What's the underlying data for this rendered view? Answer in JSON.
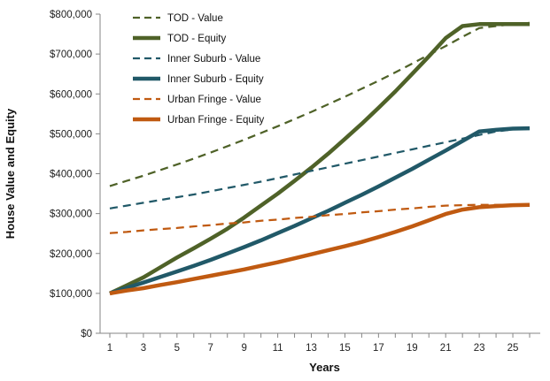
{
  "chart_data": {
    "type": "line",
    "xlabel": "Years",
    "ylabel": "House Value and Equity",
    "xlim": [
      1,
      26
    ],
    "ylim": [
      0,
      800000
    ],
    "x_ticks": [
      1,
      3,
      5,
      7,
      9,
      11,
      13,
      15,
      17,
      19,
      21,
      23,
      25
    ],
    "y_ticks": [
      0,
      100000,
      200000,
      300000,
      400000,
      500000,
      600000,
      700000,
      800000
    ],
    "y_tick_labels": [
      "$0",
      "$100,000",
      "$200,000",
      "$300,000",
      "$400,000",
      "$500,000",
      "$600,000",
      "$700,000",
      "$800,000"
    ],
    "grid": false,
    "legend_position": "top-left",
    "x": [
      1,
      2,
      3,
      4,
      5,
      6,
      7,
      8,
      9,
      10,
      11,
      12,
      13,
      14,
      15,
      16,
      17,
      18,
      19,
      20,
      21,
      22,
      23,
      24,
      25,
      26
    ],
    "series": [
      {
        "name": "TOD - Value",
        "style": "dashed",
        "color": "#4f6228",
        "values": [
          369000,
          382000,
          395000,
          409000,
          423000,
          438000,
          453000,
          469000,
          485000,
          502000,
          519000,
          537000,
          555000,
          574000,
          593000,
          613000,
          633000,
          654000,
          676000,
          698000,
          720000,
          743000,
          765000,
          770000,
          775000,
          778000
        ]
      },
      {
        "name": "TOD - Equity",
        "style": "solid",
        "color": "#4f6228",
        "values": [
          100000,
          120000,
          140000,
          165000,
          190000,
          213000,
          237000,
          262000,
          290000,
          320000,
          350000,
          382000,
          415000,
          450000,
          487000,
          525000,
          565000,
          606000,
          650000,
          694000,
          740000,
          770000,
          775000,
          775000,
          775000,
          775000
        ]
      },
      {
        "name": "Inner Suburb - Value",
        "style": "dashed",
        "color": "#215968",
        "values": [
          313000,
          320000,
          327000,
          334000,
          341000,
          348000,
          356000,
          364000,
          372000,
          380000,
          389000,
          398000,
          407000,
          416000,
          425000,
          434000,
          443000,
          452000,
          461000,
          470000,
          479000,
          488000,
          497000,
          506000,
          511000,
          514000
        ]
      },
      {
        "name": "Inner Suburb - Equity",
        "style": "solid",
        "color": "#215968",
        "values": [
          100000,
          114000,
          127000,
          141000,
          155000,
          169000,
          184000,
          200000,
          216000,
          233000,
          251000,
          269000,
          288000,
          307000,
          327000,
          347000,
          368000,
          390000,
          412000,
          435000,
          458000,
          482000,
          506000,
          510000,
          513000,
          514000
        ]
      },
      {
        "name": "Urban Fringe - Value",
        "style": "dashed",
        "color": "#c05a11",
        "values": [
          251000,
          254000,
          258000,
          261000,
          264000,
          268000,
          271000,
          275000,
          278000,
          282000,
          285000,
          289000,
          292000,
          296000,
          299000,
          303000,
          306000,
          310000,
          313000,
          317000,
          320000,
          321000,
          322000,
          322000,
          322000,
          322000
        ]
      },
      {
        "name": "Urban Fringe - Equity",
        "style": "solid",
        "color": "#c05a11",
        "values": [
          100000,
          107000,
          113000,
          121000,
          128000,
          136000,
          144000,
          152000,
          160000,
          169000,
          178000,
          188000,
          198000,
          208000,
          218000,
          229000,
          241000,
          254000,
          268000,
          283000,
          299000,
          310000,
          316000,
          319000,
          321000,
          322000
        ]
      }
    ]
  }
}
